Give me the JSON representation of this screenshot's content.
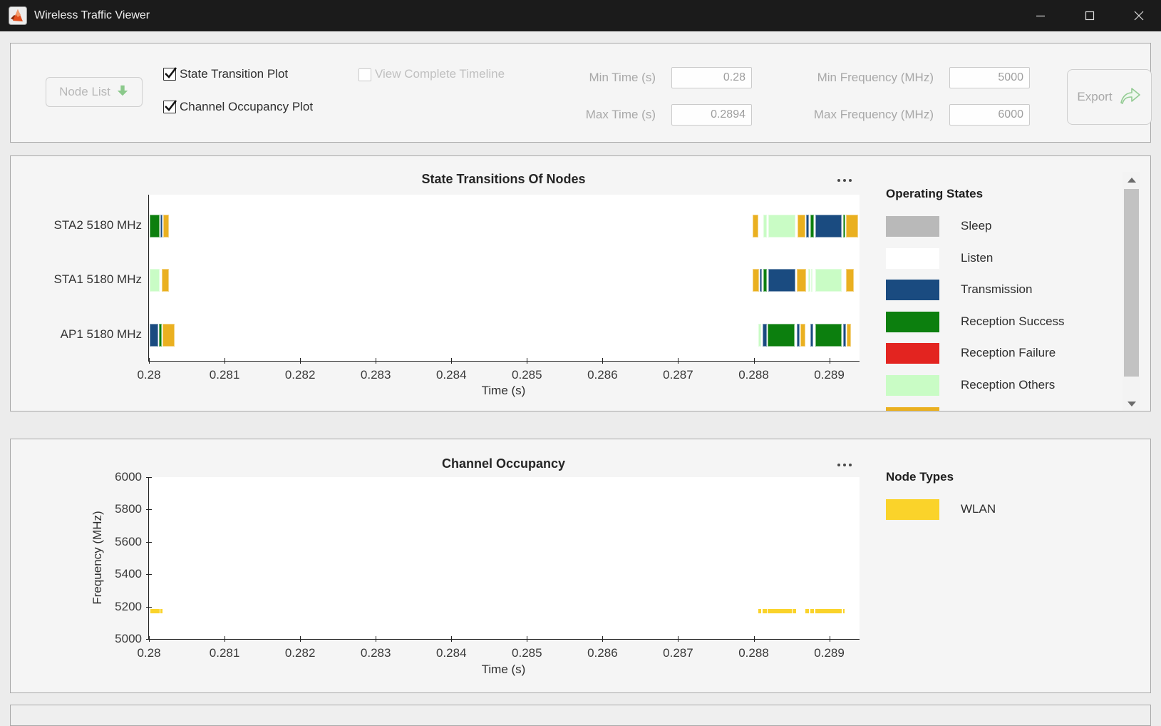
{
  "window": {
    "title": "Wireless Traffic Viewer"
  },
  "toolbar": {
    "node_list": {
      "label": "Node List",
      "enabled": false
    },
    "checkboxes": [
      {
        "label": "State Transition Plot",
        "checked": true,
        "enabled": true
      },
      {
        "label": "Channel Occupancy Plot",
        "checked": true,
        "enabled": true
      },
      {
        "label": "View Complete Timeline",
        "checked": false,
        "enabled": false
      }
    ],
    "fields": [
      {
        "label": "Min Time (s)",
        "value": "0.28"
      },
      {
        "label": "Max Time (s)",
        "value": "0.2894"
      },
      {
        "label": "Min Frequency (MHz)",
        "value": "5000"
      },
      {
        "label": "Max Frequency (MHz)",
        "value": "6000"
      }
    ],
    "export": {
      "label": "Export",
      "enabled": false
    }
  },
  "colors": {
    "titlebar_bg": "#1b1b1b",
    "panel_border": "#a9a9a9",
    "accent_green": "#8bc98b",
    "states": {
      "sleep": "#b9b9b9",
      "listen": "#ffffff",
      "transmission": "#1a4b80",
      "reception_success": "#0c7f0e",
      "reception_failure": "#e32420",
      "reception_others": "#c9fcc5",
      "contention": "#eab020"
    },
    "node_types": {
      "wlan": "#fad32a"
    }
  },
  "chart_data": [
    {
      "type": "timeline",
      "title": "State Transitions Of Nodes",
      "xlabel": "Time (s)",
      "x_range": [
        0.28,
        0.2894
      ],
      "x_ticks": [
        "0.28",
        "0.281",
        "0.282",
        "0.283",
        "0.284",
        "0.285",
        "0.286",
        "0.287",
        "0.288",
        "0.289"
      ],
      "rows": [
        {
          "label": "STA2 5180 MHz",
          "segments": [
            {
              "state": "reception_success",
              "t0": 0.28001,
              "t1": 0.28014
            },
            {
              "state": "transmission",
              "t0": 0.28015,
              "t1": 0.28018
            },
            {
              "state": "contention",
              "t0": 0.28019,
              "t1": 0.28026
            },
            {
              "state": "contention",
              "t0": 0.28799,
              "t1": 0.28806
            },
            {
              "state": "reception_others",
              "t0": 0.28813,
              "t1": 0.28817
            },
            {
              "state": "reception_others",
              "t0": 0.28819,
              "t1": 0.28855
            },
            {
              "state": "contention",
              "t0": 0.28858,
              "t1": 0.28868
            },
            {
              "state": "transmission",
              "t0": 0.28869,
              "t1": 0.28873
            },
            {
              "state": "reception_success",
              "t0": 0.28875,
              "t1": 0.2888
            },
            {
              "state": "transmission",
              "t0": 0.28882,
              "t1": 0.28916
            },
            {
              "state": "reception_success",
              "t0": 0.28918,
              "t1": 0.28921
            },
            {
              "state": "contention",
              "t0": 0.28922,
              "t1": 0.28938
            }
          ]
        },
        {
          "label": "STA1 5180 MHz",
          "segments": [
            {
              "state": "reception_others",
              "t0": 0.28001,
              "t1": 0.28014
            },
            {
              "state": "contention",
              "t0": 0.28017,
              "t1": 0.28026
            },
            {
              "state": "contention",
              "t0": 0.28799,
              "t1": 0.28807
            },
            {
              "state": "transmission",
              "t0": 0.28808,
              "t1": 0.28811
            },
            {
              "state": "reception_success",
              "t0": 0.28813,
              "t1": 0.28817
            },
            {
              "state": "transmission",
              "t0": 0.28819,
              "t1": 0.28855
            },
            {
              "state": "contention",
              "t0": 0.28857,
              "t1": 0.28869
            },
            {
              "state": "reception_others",
              "t0": 0.28872,
              "t1": 0.28875
            },
            {
              "state": "reception_others",
              "t0": 0.28876,
              "t1": 0.28878
            },
            {
              "state": "reception_others",
              "t0": 0.28882,
              "t1": 0.28916
            },
            {
              "state": "contention",
              "t0": 0.28922,
              "t1": 0.28932
            }
          ]
        },
        {
          "label": "AP1 5180 MHz",
          "segments": [
            {
              "state": "transmission",
              "t0": 0.28001,
              "t1": 0.28012
            },
            {
              "state": "reception_success",
              "t0": 0.28013,
              "t1": 0.28017
            },
            {
              "state": "contention",
              "t0": 0.28018,
              "t1": 0.28034
            },
            {
              "state": "reception_others",
              "t0": 0.28806,
              "t1": 0.2881
            },
            {
              "state": "transmission",
              "t0": 0.28812,
              "t1": 0.28817
            },
            {
              "state": "reception_success",
              "t0": 0.28818,
              "t1": 0.28854
            },
            {
              "state": "transmission",
              "t0": 0.28857,
              "t1": 0.28861
            },
            {
              "state": "contention",
              "t0": 0.28862,
              "t1": 0.28868
            },
            {
              "state": "transmission",
              "t0": 0.28875,
              "t1": 0.28879
            },
            {
              "state": "reception_success",
              "t0": 0.28882,
              "t1": 0.28916
            },
            {
              "state": "transmission",
              "t0": 0.28918,
              "t1": 0.28922
            },
            {
              "state": "contention",
              "t0": 0.28923,
              "t1": 0.28929
            }
          ]
        }
      ],
      "legend": {
        "title": "Operating States",
        "items": [
          {
            "label": "Sleep",
            "color": "#b9b9b9"
          },
          {
            "label": "Listen",
            "color": "#ffffff"
          },
          {
            "label": "Transmission",
            "color": "#1a4b80"
          },
          {
            "label": "Reception Success",
            "color": "#0c7f0e"
          },
          {
            "label": "Reception Failure",
            "color": "#e32420"
          },
          {
            "label": "Reception Others",
            "color": "#c9fcc5"
          },
          {
            "label": "",
            "color": "#eab020"
          }
        ]
      }
    },
    {
      "type": "occupancy",
      "title": "Channel Occupancy",
      "xlabel": "Time (s)",
      "ylabel": "Frequency (MHz)",
      "x_range": [
        0.28,
        0.2894
      ],
      "x_ticks": [
        "0.28",
        "0.281",
        "0.282",
        "0.283",
        "0.284",
        "0.285",
        "0.286",
        "0.287",
        "0.288",
        "0.289"
      ],
      "y_range": [
        5000,
        6000
      ],
      "y_ticks": [
        "6000",
        "5800",
        "5600",
        "5400",
        "5200",
        "5000"
      ],
      "segments": [
        {
          "node_type": "wlan",
          "freq_mhz": 5180,
          "t0": 0.28002,
          "t1": 0.28014
        },
        {
          "node_type": "wlan",
          "freq_mhz": 5180,
          "t0": 0.28015,
          "t1": 0.28018
        },
        {
          "node_type": "wlan",
          "freq_mhz": 5180,
          "t0": 0.28806,
          "t1": 0.2881
        },
        {
          "node_type": "wlan",
          "freq_mhz": 5180,
          "t0": 0.28812,
          "t1": 0.28817
        },
        {
          "node_type": "wlan",
          "freq_mhz": 5180,
          "t0": 0.28818,
          "t1": 0.2885
        },
        {
          "node_type": "wlan",
          "freq_mhz": 5180,
          "t0": 0.28851,
          "t1": 0.28856
        },
        {
          "node_type": "wlan",
          "freq_mhz": 5180,
          "t0": 0.28868,
          "t1": 0.28873
        },
        {
          "node_type": "wlan",
          "freq_mhz": 5180,
          "t0": 0.28875,
          "t1": 0.2888
        },
        {
          "node_type": "wlan",
          "freq_mhz": 5180,
          "t0": 0.28882,
          "t1": 0.28916
        },
        {
          "node_type": "wlan",
          "freq_mhz": 5180,
          "t0": 0.28918,
          "t1": 0.2892
        }
      ],
      "legend": {
        "title": "Node Types",
        "items": [
          {
            "label": "WLAN",
            "color": "#fad32a"
          }
        ]
      }
    }
  ]
}
